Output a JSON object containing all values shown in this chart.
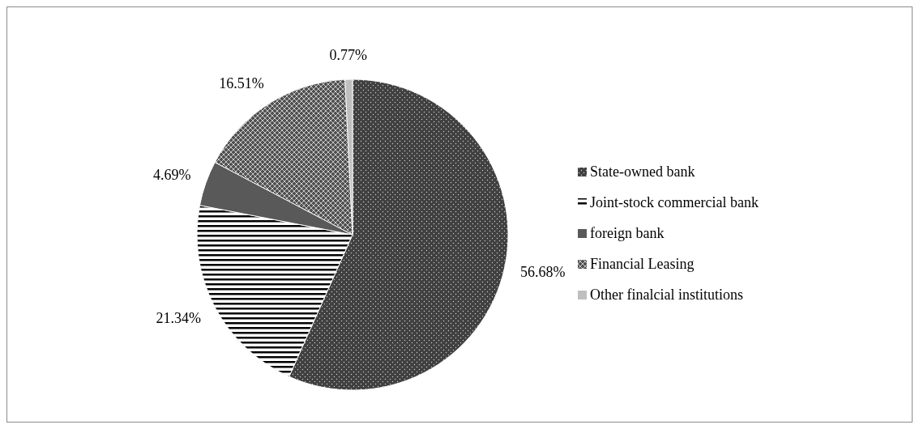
{
  "chart_data": {
    "type": "pie",
    "categories": [
      "State-owned bank",
      "Joint-stock commercial bank",
      "foreign bank",
      "Financial Leasing",
      "Other finalcial institutions"
    ],
    "values": [
      56.68,
      21.34,
      4.69,
      16.51,
      0.77
    ],
    "colors": [
      "#404040",
      "#000000",
      "#595959",
      "#505050",
      "#bfbfbf"
    ],
    "value_labels": [
      "56.68%",
      "21.34%",
      "4.69%",
      "16.51%",
      "0.77%"
    ],
    "legend": "right"
  }
}
